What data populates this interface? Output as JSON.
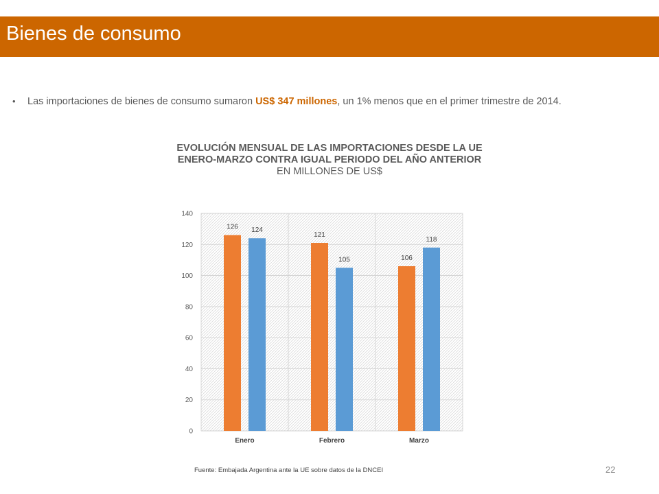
{
  "slide": {
    "title": "Bienes de consumo",
    "bullet": {
      "text_before": "Las importaciones de bienes de consumo sumaron ",
      "highlight": "US$ 347 millones",
      "text_after": ", un 1% menos que en el primer trimestre de 2014."
    },
    "source": "Fuente: Embajada  Argentina ante la UE sobre datos de la DNCEI",
    "page_number": "22"
  },
  "colors": {
    "header_bg": "#cc6600",
    "highlight": "#cc6600",
    "series_1": "#ed7d31",
    "series_2": "#5b9bd5"
  },
  "chart_data": {
    "type": "bar",
    "title_line1": "EVOLUCIÓN MENSUAL DE LAS IMPORTACIONES DESDE LA UE",
    "title_line2": "ENERO-MARZO CONTRA IGUAL PERIODO DEL AÑO ANTERIOR",
    "subtitle": "EN MILLONES DE US$",
    "categories": [
      "Enero",
      "Febrero",
      "Marzo"
    ],
    "series": [
      {
        "values": [
          126,
          121,
          106
        ],
        "color": "#ed7d31"
      },
      {
        "values": [
          124,
          105,
          118
        ],
        "color": "#5b9bd5"
      }
    ],
    "ylim": [
      0,
      140
    ],
    "yticks": [
      0,
      20,
      40,
      60,
      80,
      100,
      120,
      140
    ],
    "grid": true,
    "legend": "none"
  }
}
